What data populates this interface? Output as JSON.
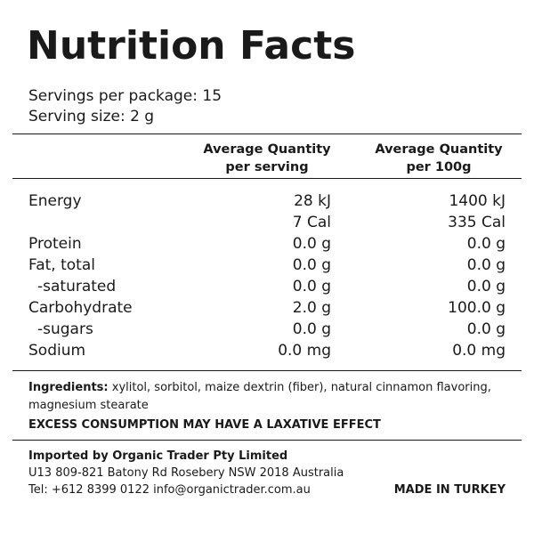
{
  "title": "Nutrition Facts",
  "servings_per_package": "Servings per package: 15",
  "serving_size": "Serving size: 2 g",
  "columns": {
    "per_serving_line1": "Average Quantity",
    "per_serving_line2": "per serving",
    "per_100g_line1": "Average Quantity",
    "per_100g_line2": "per 100g"
  },
  "rows": [
    {
      "label": "Energy",
      "per_serving": "28 kJ",
      "per_100g": "1400 kJ"
    },
    {
      "label": "",
      "per_serving": "7 Cal",
      "per_100g": "335 Cal"
    },
    {
      "label": "Protein",
      "per_serving": "0.0 g",
      "per_100g": "0.0 g"
    },
    {
      "label": "Fat, total",
      "per_serving": "0.0 g",
      "per_100g": "0.0 g"
    },
    {
      "label": "-saturated",
      "per_serving": "0.0 g",
      "per_100g": "0.0 g"
    },
    {
      "label": "Carbohydrate",
      "per_serving": "2.0 g",
      "per_100g": "100.0 g"
    },
    {
      "label": "-sugars",
      "per_serving": "0.0 g",
      "per_100g": "0.0 g"
    },
    {
      "label": "Sodium",
      "per_serving": "0.0 mg",
      "per_100g": "0.0 mg"
    }
  ],
  "ingredients_label": "Ingredients:",
  "ingredients_text": "xylitol, sorbitol, maize dextrin (fiber), natural cinnamon flavoring, magnesium stearate",
  "warning": "EXCESS CONSUMPTION MAY HAVE A LAXATIVE EFFECT",
  "importer": {
    "name": "Imported by Organic Trader Pty Limited",
    "address": "U13 809-821 Batony Rd Rosebery NSW 2018 Australia",
    "contact": "Tel: +612 8399 0122 info@organictrader.com.au"
  },
  "origin": "MADE IN TURKEY"
}
